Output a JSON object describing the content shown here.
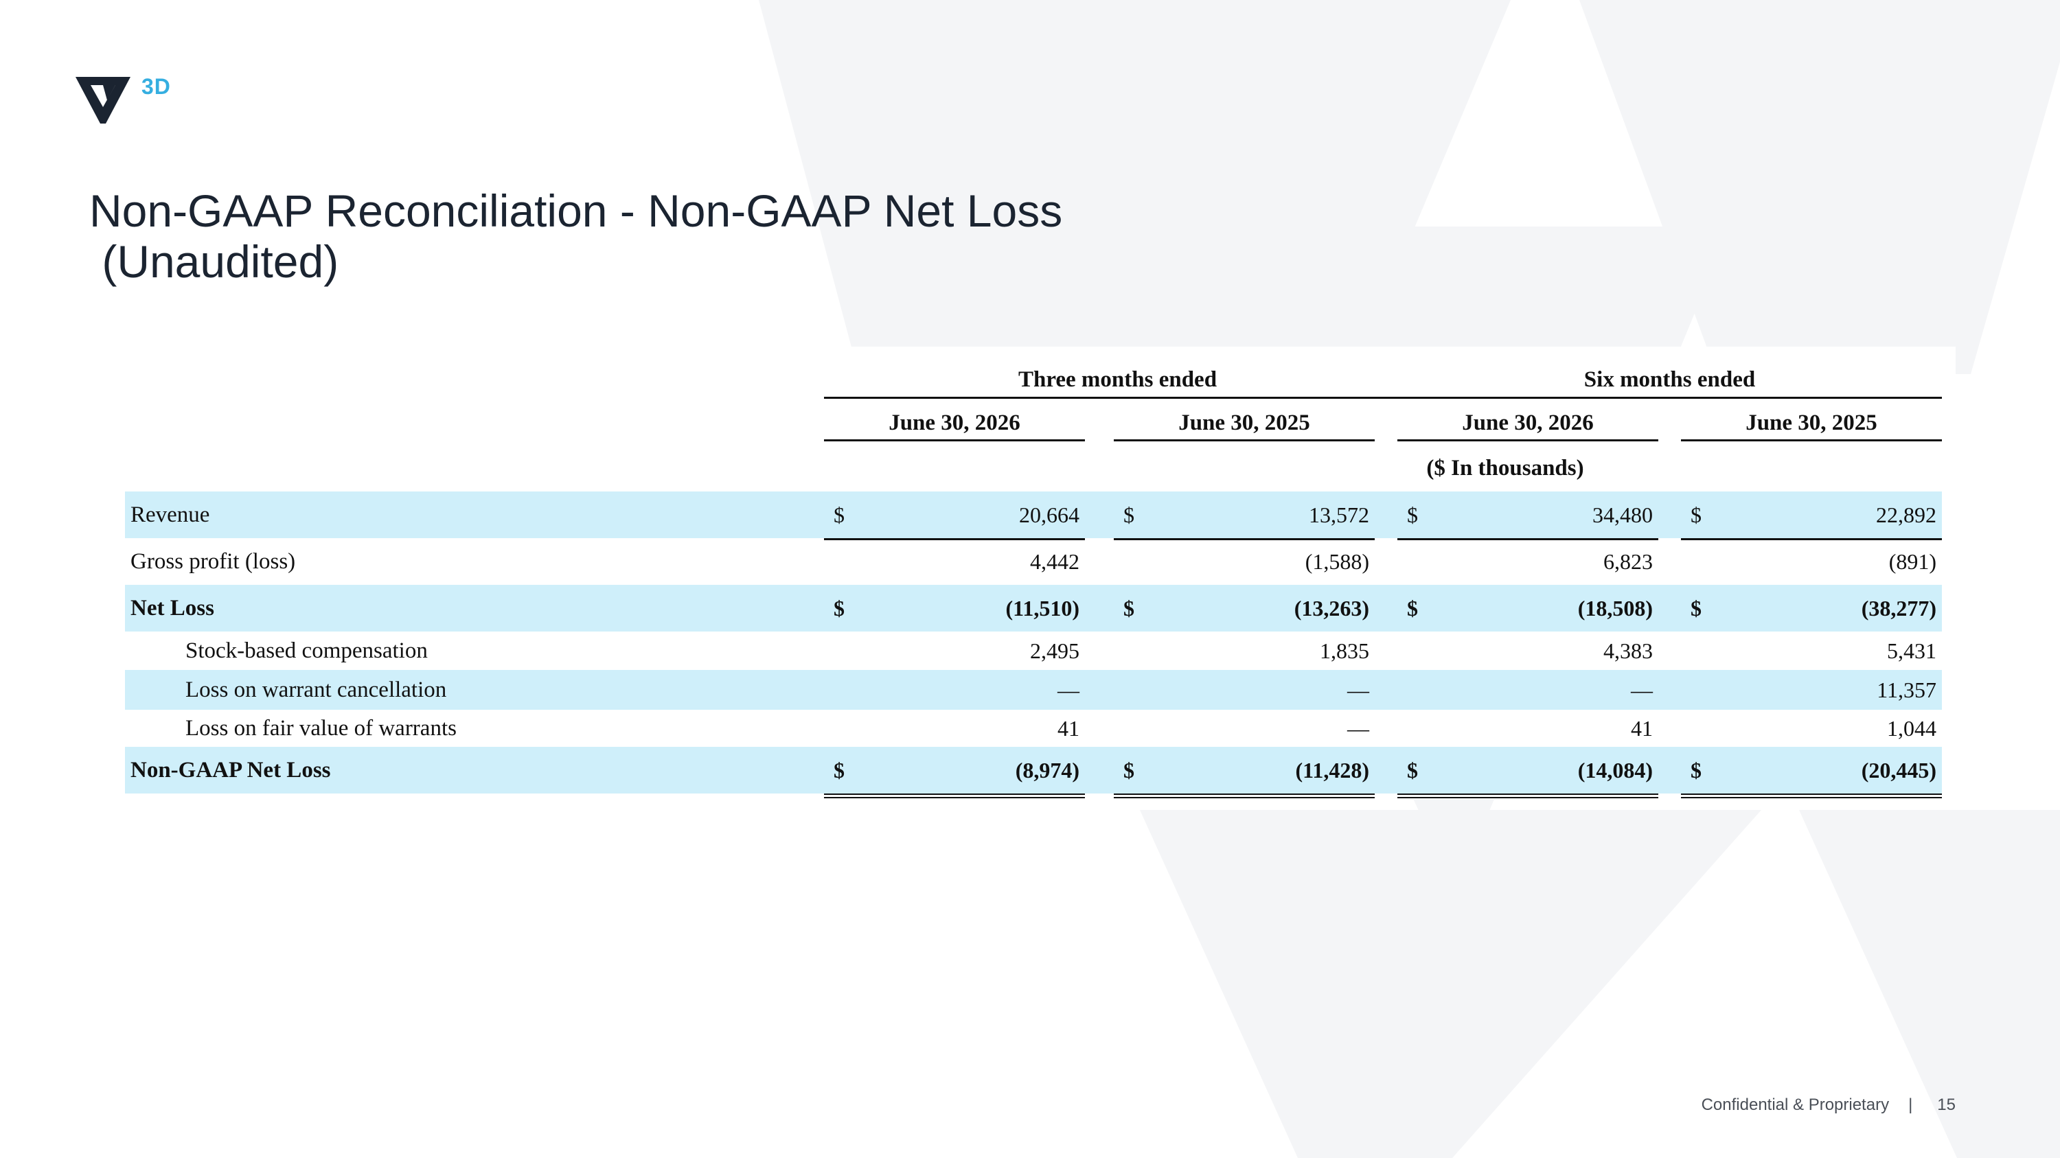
{
  "brand": {
    "logo_text": "3D",
    "accent": "#35aee0",
    "mark_color": "#1b2431"
  },
  "title": {
    "line1": "Non-GAAP Reconciliation - Non-GAAP Net Loss",
    "line2": " (Unaudited)"
  },
  "table": {
    "group_headers": [
      "Three months ended",
      "Six months ended"
    ],
    "column_headers": [
      "June 30, 2026",
      "June 30, 2025",
      "June 30, 2026",
      "June 30, 2025"
    ],
    "units_note": "($ In thousands)",
    "row_shade_color": "#cfeffa",
    "rows": [
      {
        "label": "Revenue",
        "bold": false,
        "indent": false,
        "shaded": true,
        "cells": [
          {
            "cur": "$",
            "val": "20,664"
          },
          {
            "cur": "$",
            "val": "13,572"
          },
          {
            "cur": "$",
            "val": "34,480"
          },
          {
            "cur": "$",
            "val": "22,892"
          }
        ]
      },
      {
        "label": "Gross profit (loss)",
        "bold": false,
        "indent": false,
        "shaded": false,
        "cells": [
          {
            "cur": "",
            "val": "4,442"
          },
          {
            "cur": "",
            "val": "(1,588)"
          },
          {
            "cur": "",
            "val": "6,823"
          },
          {
            "cur": "",
            "val": "(891)"
          }
        ]
      },
      {
        "label": "Net Loss",
        "bold": true,
        "indent": false,
        "shaded": true,
        "cells": [
          {
            "cur": "$",
            "val": "(11,510)"
          },
          {
            "cur": "$",
            "val": "(13,263)"
          },
          {
            "cur": "$",
            "val": "(18,508)"
          },
          {
            "cur": "$",
            "val": "(38,277)"
          }
        ]
      },
      {
        "label": "Stock-based compensation",
        "bold": false,
        "indent": true,
        "shaded": false,
        "cells": [
          {
            "cur": "",
            "val": "2,495"
          },
          {
            "cur": "",
            "val": "1,835"
          },
          {
            "cur": "",
            "val": "4,383"
          },
          {
            "cur": "",
            "val": "5,431"
          }
        ]
      },
      {
        "label": "Loss on warrant cancellation",
        "bold": false,
        "indent": true,
        "shaded": true,
        "cells": [
          {
            "cur": "",
            "val": "—"
          },
          {
            "cur": "",
            "val": "—"
          },
          {
            "cur": "",
            "val": "—"
          },
          {
            "cur": "",
            "val": "11,357"
          }
        ]
      },
      {
        "label": "Loss on fair value of warrants",
        "bold": false,
        "indent": true,
        "shaded": false,
        "cells": [
          {
            "cur": "",
            "val": "41"
          },
          {
            "cur": "",
            "val": "—"
          },
          {
            "cur": "",
            "val": "41"
          },
          {
            "cur": "",
            "val": "1,044"
          }
        ]
      },
      {
        "label": "Non-GAAP Net Loss",
        "bold": true,
        "indent": false,
        "shaded": true,
        "cells": [
          {
            "cur": "$",
            "val": "(8,974)"
          },
          {
            "cur": "$",
            "val": "(11,428)"
          },
          {
            "cur": "$",
            "val": "(14,084)"
          },
          {
            "cur": "$",
            "val": "(20,445)"
          }
        ]
      }
    ]
  },
  "footer": {
    "confidential": "Confidential & Proprietary",
    "separator": "|",
    "page_number": "15"
  }
}
